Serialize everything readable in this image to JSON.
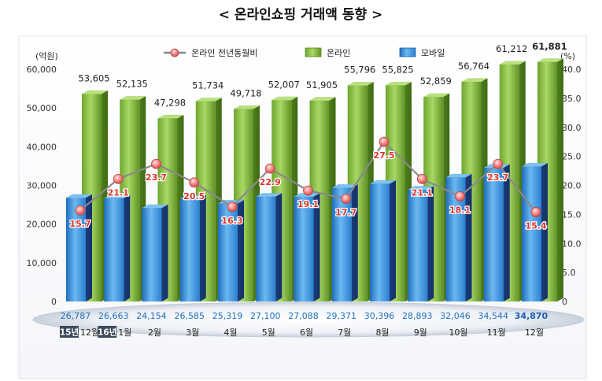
{
  "chart_data": {
    "type": "bar",
    "title": "< 온라인쇼핑 거래액 동향 >",
    "categories": [
      "12월",
      "1월",
      "2월",
      "3월",
      "4월",
      "5월",
      "6월",
      "7월",
      "8월",
      "9월",
      "10월",
      "11월",
      "12월"
    ],
    "year_badges": [
      {
        "index": 0,
        "text": "15년"
      },
      {
        "index": 1,
        "text": "16년"
      }
    ],
    "left_axis": {
      "unit": "(억원)",
      "ylim": [
        0,
        60000
      ],
      "ticks": [
        "0",
        "10,000",
        "20,000",
        "30,000",
        "40,000",
        "50,000",
        "60,000"
      ]
    },
    "right_axis": {
      "unit": "(%)",
      "ylim": [
        0,
        40
      ],
      "ticks": [
        "0",
        "5.0",
        "10.0",
        "15.0",
        "20.0",
        "25.0",
        "30.0",
        "35.0",
        "40.0"
      ]
    },
    "legend": {
      "position": "top"
    },
    "series": [
      {
        "name": "온라인",
        "type": "bar",
        "color": "#8cc04a",
        "values": [
          53605,
          52135,
          47298,
          51734,
          49718,
          52007,
          51905,
          55796,
          55825,
          52859,
          56764,
          61212,
          61881
        ],
        "labels": [
          "53,605",
          "52,135",
          "47,298",
          "51,734",
          "49,718",
          "52,007",
          "51,905",
          "55,796",
          "55,825",
          "52,859",
          "56,764",
          "61,212",
          "61,881"
        ]
      },
      {
        "name": "모바일",
        "type": "bar",
        "color": "#3d8fd8",
        "values": [
          26787,
          26663,
          24154,
          26585,
          25319,
          27100,
          27088,
          29371,
          30396,
          28893,
          32046,
          34544,
          34870
        ],
        "labels": [
          "26,787",
          "26,663",
          "24,154",
          "26,585",
          "25,319",
          "27,100",
          "27,088",
          "29,371",
          "30,396",
          "28,893",
          "32,046",
          "34,544",
          "34,870"
        ]
      },
      {
        "name": "온라인 전년동월비",
        "type": "line",
        "axis": "right",
        "color": "#888888",
        "values": [
          15.7,
          21.1,
          23.7,
          20.5,
          16.3,
          22.9,
          19.1,
          17.7,
          27.5,
          21.1,
          18.1,
          23.7,
          15.4
        ],
        "labels": [
          "15.7",
          "21.1",
          "23.7",
          "20.5",
          "16.3",
          "22.9",
          "19.1",
          "17.7",
          "27.5",
          "21.1",
          "18.1",
          "23.7",
          "15.4"
        ]
      }
    ]
  }
}
